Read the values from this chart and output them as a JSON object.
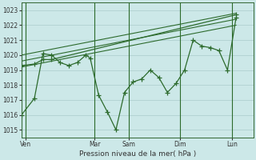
{
  "bg_color": "#cce8e8",
  "grid_color": "#aacccc",
  "line_color": "#2d6b2d",
  "title": "Pression niveau de la mer( hPa )",
  "ylim": [
    1014.5,
    1023.5
  ],
  "yticks": [
    1015,
    1016,
    1017,
    1018,
    1019,
    1020,
    1021,
    1022,
    1023
  ],
  "day_labels": [
    "Ven",
    "Mar",
    "Sam",
    "Dim",
    "Lun"
  ],
  "day_positions": [
    0.5,
    8.5,
    12.5,
    18.5,
    24.5
  ],
  "day_vlines": [
    0.5,
    8.5,
    12.5,
    18.5,
    24.5
  ],
  "xlim": [
    0,
    27
  ],
  "series1_x": [
    0.0,
    1.5,
    2.5,
    3.5,
    4.5,
    5.5,
    6.5,
    7.5,
    8.0,
    9.0,
    10.0,
    11.0,
    12.0,
    13.0,
    14.0,
    15.0,
    16.0,
    17.0,
    18.0,
    19.0,
    20.0,
    21.0,
    22.0,
    23.0,
    24.0,
    25.0
  ],
  "series1_y": [
    1016.0,
    1017.1,
    1020.1,
    1020.0,
    1019.5,
    1019.3,
    1019.5,
    1020.0,
    1019.8,
    1017.3,
    1016.2,
    1015.0,
    1017.5,
    1018.2,
    1018.4,
    1019.0,
    1018.5,
    1017.5,
    1018.1,
    1019.0,
    1021.0,
    1020.6,
    1020.5,
    1020.3,
    1019.0,
    1022.5
  ],
  "series2_x": [
    0.0,
    1.5,
    2.5,
    3.5,
    25.0
  ],
  "series2_y": [
    1019.3,
    1019.4,
    1019.7,
    1019.7,
    1022.7
  ],
  "trend1_x": [
    0.0,
    25.0
  ],
  "trend1_y": [
    1019.2,
    1022.0
  ],
  "trend2_x": [
    0.0,
    25.0
  ],
  "trend2_y": [
    1019.6,
    1022.4
  ],
  "trend3_x": [
    0.0,
    25.0
  ],
  "trend3_y": [
    1020.0,
    1022.8
  ]
}
